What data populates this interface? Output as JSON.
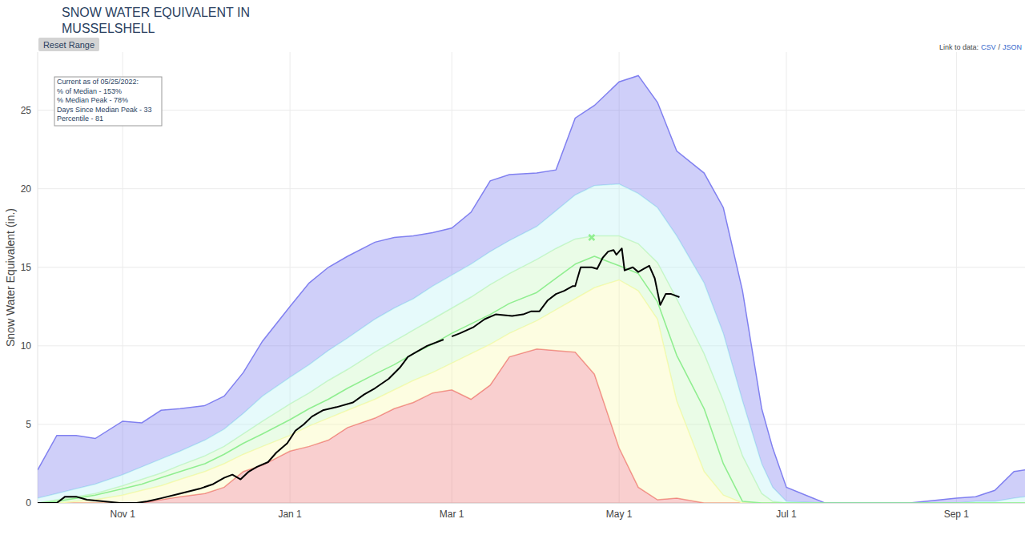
{
  "chart_data": {
    "type": "area",
    "title": [
      "SNOW WATER EQUIVALENT IN",
      "MUSSELSHELL"
    ],
    "y_label": "Snow Water Equivalent (in.)",
    "controls": {
      "button": "Reset Range",
      "link_prefix": "Link to data:",
      "links": [
        "CSV",
        "JSON"
      ],
      "link_separator": "/"
    },
    "annotation": [
      "Current as of 05/25/2022:",
      "% of Median - 153%",
      "% Median Peak - 78%",
      "Days Since Median Peak - 33",
      "Percentile - 81"
    ],
    "xlim": [
      0,
      360
    ],
    "xticks": [
      {
        "value": 31,
        "label": "Nov 1"
      },
      {
        "value": 92,
        "label": "Jan 1"
      },
      {
        "value": 151,
        "label": "Mar 1"
      },
      {
        "value": 212,
        "label": "May 1"
      },
      {
        "value": 273,
        "label": "Jul 1"
      },
      {
        "value": 335,
        "label": "Sep 1"
      }
    ],
    "ylim": [
      0,
      28.7
    ],
    "yticks": [
      0,
      5,
      10,
      15,
      20,
      25
    ],
    "grid": true,
    "x": [
      0,
      7,
      14,
      21,
      31,
      38,
      45,
      52,
      61,
      68,
      75,
      82,
      92,
      99,
      106,
      113,
      123,
      130,
      137,
      144,
      151,
      158,
      165,
      172,
      182,
      189,
      196,
      203,
      212,
      219,
      226,
      233,
      243,
      250,
      257,
      264,
      268,
      273,
      287,
      304,
      318,
      335,
      342,
      349,
      356,
      360
    ],
    "series": [
      {
        "type": "area",
        "color": "#f08080",
        "values": [
          0,
          0,
          0,
          0,
          0,
          0,
          0.2,
          0.4,
          0.6,
          1.0,
          2.0,
          2.4,
          3.3,
          3.6,
          4.0,
          4.8,
          5.4,
          6.0,
          6.4,
          7.0,
          7.2,
          6.6,
          7.5,
          9.3,
          9.8,
          9.7,
          9.6,
          8.2,
          3.5,
          1.0,
          0.2,
          0.3,
          0,
          0,
          0,
          0,
          0,
          0,
          0,
          0,
          0,
          0,
          0,
          0,
          0,
          0
        ]
      },
      {
        "type": "area",
        "color": "#fbfbb0",
        "values": [
          0,
          0,
          0.1,
          0.2,
          0.5,
          0.8,
          1.1,
          1.5,
          2.0,
          2.5,
          3.1,
          3.6,
          4.3,
          4.9,
          5.4,
          5.9,
          6.6,
          7.2,
          7.8,
          8.3,
          8.9,
          9.5,
          10.1,
          10.8,
          11.6,
          12.3,
          13.0,
          13.7,
          14.2,
          13.5,
          11.7,
          6.5,
          2.0,
          0.5,
          0,
          0,
          0,
          0,
          0,
          0,
          0,
          0,
          0,
          0,
          0,
          0
        ]
      },
      {
        "type": "area",
        "color": "#c8f7c0",
        "values": [
          0,
          0.2,
          0.4,
          0.6,
          1.1,
          1.5,
          1.9,
          2.4,
          3.0,
          3.6,
          4.4,
          5.2,
          6.3,
          7.0,
          7.8,
          8.5,
          9.6,
          10.3,
          11.0,
          11.7,
          12.4,
          13.1,
          13.9,
          14.6,
          15.5,
          16.2,
          16.8,
          17.0,
          17.0,
          16.5,
          15.3,
          13.0,
          9.5,
          6.5,
          3.0,
          0.6,
          0.1,
          0,
          0,
          0,
          0,
          0,
          0,
          0,
          0,
          0
        ]
      },
      {
        "type": "area",
        "color": "#bdf2f4",
        "values": [
          0.3,
          0.6,
          0.9,
          1.2,
          1.8,
          2.3,
          2.8,
          3.3,
          4.0,
          4.7,
          5.7,
          6.8,
          8.0,
          8.8,
          9.7,
          10.5,
          11.7,
          12.4,
          13.0,
          13.8,
          14.5,
          15.2,
          16.0,
          16.7,
          17.6,
          18.6,
          19.6,
          20.2,
          20.3,
          19.7,
          18.8,
          17.0,
          14.0,
          10.8,
          6.5,
          2.5,
          1.0,
          0.1,
          0,
          0,
          0,
          0,
          0.1,
          0.1,
          0.3,
          0.4
        ]
      },
      {
        "type": "area",
        "color": "#8080f0",
        "values": [
          2.1,
          4.3,
          4.3,
          4.1,
          5.2,
          5.1,
          5.9,
          6.0,
          6.2,
          6.8,
          8.3,
          10.3,
          12.5,
          14.0,
          15.0,
          15.7,
          16.6,
          16.9,
          17.0,
          17.2,
          17.5,
          18.5,
          20.5,
          20.9,
          21.0,
          21.2,
          24.5,
          25.3,
          26.8,
          27.2,
          25.5,
          22.4,
          21.0,
          18.8,
          13.5,
          6.0,
          3.5,
          1.0,
          0,
          0,
          0,
          0.3,
          0.4,
          0.8,
          2.0,
          2.1
        ]
      },
      {
        "type": "line",
        "color": "#90ee90",
        "values": [
          0,
          0.1,
          0.3,
          0.5,
          0.9,
          1.2,
          1.6,
          2.0,
          2.5,
          3.1,
          3.8,
          4.4,
          5.3,
          6.0,
          6.6,
          7.3,
          8.2,
          8.8,
          9.5,
          10.1,
          10.8,
          11.4,
          12.0,
          12.7,
          13.4,
          14.3,
          15.2,
          15.7,
          15.1,
          14.6,
          12.8,
          9.4,
          6.0,
          2.5,
          0.1,
          0,
          0,
          0,
          0,
          0,
          0,
          0,
          0,
          0,
          0,
          0
        ]
      },
      {
        "type": "line",
        "color": "#000000",
        "x": [
          0,
          7,
          10,
          14,
          18,
          24,
          30,
          36,
          40,
          45,
          52,
          59,
          64,
          68,
          71,
          74,
          77,
          80,
          84,
          87,
          91,
          94,
          97,
          100,
          104,
          109,
          115,
          119,
          123,
          128,
          132,
          135,
          138,
          142,
          148,
          150,
          151,
          154,
          159,
          163,
          167,
          173,
          177,
          180,
          183,
          186,
          189,
          192,
          195,
          196,
          198,
          202,
          204,
          206,
          208,
          210,
          211,
          213,
          214,
          217,
          219,
          221,
          223,
          225,
          227,
          229,
          231,
          234
        ],
        "values": [
          0,
          0,
          0.4,
          0.4,
          0.2,
          0.1,
          0,
          0,
          0.1,
          0.3,
          0.6,
          0.9,
          1.2,
          1.6,
          1.8,
          1.5,
          2.0,
          2.3,
          2.6,
          3.2,
          3.8,
          4.6,
          5.0,
          5.5,
          5.9,
          6.1,
          6.4,
          6.9,
          7.3,
          7.9,
          8.6,
          9.3,
          9.6,
          10.0,
          10.4,
          null,
          10.6,
          10.8,
          11.2,
          11.7,
          12.0,
          11.9,
          12.0,
          12.2,
          12.2,
          12.9,
          13.3,
          13.5,
          13.8,
          13.8,
          15.0,
          15.0,
          14.9,
          15.6,
          16.0,
          16.1,
          15.8,
          16.2,
          14.8,
          15.0,
          14.7,
          14.9,
          15.1,
          14.3,
          12.6,
          13.3,
          13.3,
          13.1
        ]
      },
      {
        "type": "scatter",
        "marker": "x",
        "color": "#90ee90",
        "x": [
          202
        ],
        "values": [
          16.9
        ]
      }
    ]
  }
}
